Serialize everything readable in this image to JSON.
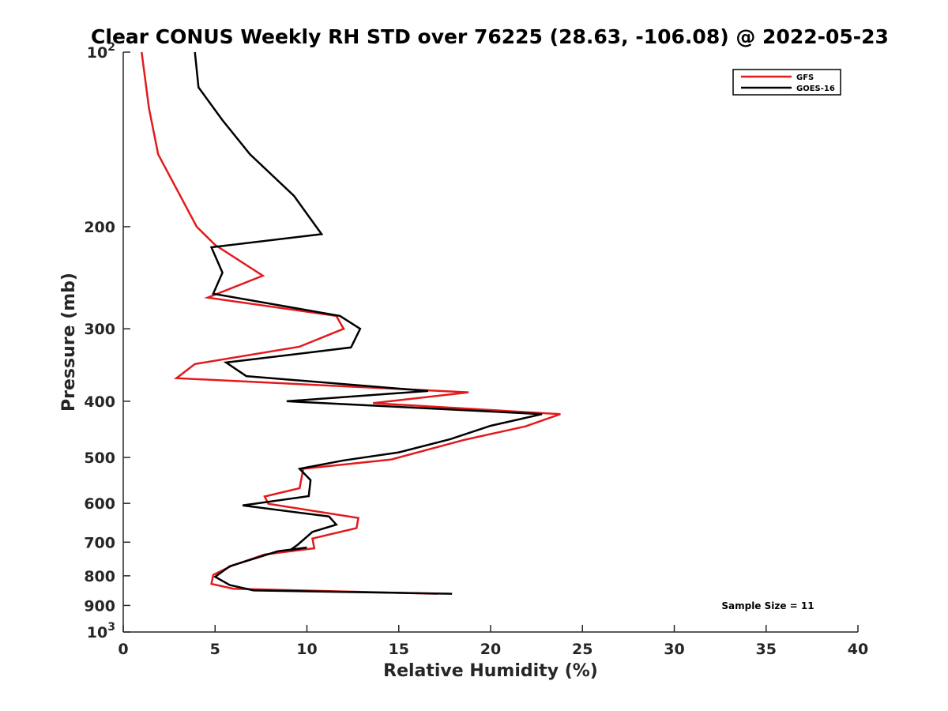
{
  "chart_data": {
    "type": "line",
    "title": "Clear CONUS Weekly RH STD over 76225 (28.63, -106.08) @ 2022-05-23",
    "xlabel": "Relative Humidity (%)",
    "ylabel": "Pressure (mb)",
    "xlim": [
      0,
      40
    ],
    "ylim": [
      100,
      1000
    ],
    "y_scale": "log",
    "y_reversed": true,
    "x_ticks": [
      0,
      5,
      10,
      15,
      20,
      25,
      30,
      35,
      40
    ],
    "y_ticks": [
      {
        "value": 100,
        "label": "10",
        "sup": "2"
      },
      {
        "value": 200,
        "label": "200"
      },
      {
        "value": 300,
        "label": "300"
      },
      {
        "value": 400,
        "label": "400"
      },
      {
        "value": 500,
        "label": "500"
      },
      {
        "value": 600,
        "label": "600"
      },
      {
        "value": 700,
        "label": "700"
      },
      {
        "value": 800,
        "label": "800"
      },
      {
        "value": 900,
        "label": "900"
      },
      {
        "value": 1000,
        "label": "10",
        "sup": "3"
      }
    ],
    "grid": false,
    "legend_position": "top-right",
    "annotation": "Sample Size = 11",
    "series": [
      {
        "name": "GFS",
        "color": "#e31a1c",
        "points": [
          [
            1.0,
            100
          ],
          [
            1.4,
            125
          ],
          [
            1.9,
            150
          ],
          [
            4.0,
            200
          ],
          [
            5.0,
            215
          ],
          [
            7.6,
            243
          ],
          [
            4.6,
            265
          ],
          [
            11.6,
            285
          ],
          [
            12.0,
            300
          ],
          [
            9.6,
            322
          ],
          [
            3.9,
            345
          ],
          [
            2.9,
            365
          ],
          [
            18.8,
            386
          ],
          [
            13.6,
            403
          ],
          [
            23.8,
            421
          ],
          [
            21.9,
            442
          ],
          [
            18.6,
            466
          ],
          [
            14.6,
            504
          ],
          [
            9.8,
            523
          ],
          [
            9.6,
            565
          ],
          [
            7.7,
            584
          ],
          [
            7.9,
            601
          ],
          [
            12.8,
            636
          ],
          [
            12.7,
            662
          ],
          [
            10.3,
            690
          ],
          [
            10.4,
            717
          ],
          [
            7.7,
            735
          ],
          [
            5.9,
            769
          ],
          [
            4.9,
            797
          ],
          [
            4.8,
            826
          ],
          [
            6.0,
            842
          ],
          [
            17.1,
            859
          ]
        ]
      },
      {
        "name": "GOES-16",
        "color": "#000000",
        "points": [
          [
            3.9,
            100
          ],
          [
            4.1,
            115
          ],
          [
            5.4,
            131
          ],
          [
            6.9,
            150
          ],
          [
            9.3,
            177
          ],
          [
            10.8,
            206
          ],
          [
            4.8,
            217
          ],
          [
            5.4,
            240
          ],
          [
            4.9,
            261
          ],
          [
            11.8,
            285
          ],
          [
            12.9,
            300
          ],
          [
            12.4,
            323
          ],
          [
            5.6,
            343
          ],
          [
            6.7,
            362
          ],
          [
            16.6,
            384
          ],
          [
            8.9,
            400
          ],
          [
            22.8,
            421
          ],
          [
            20.0,
            441
          ],
          [
            17.8,
            465
          ],
          [
            15.0,
            490
          ],
          [
            12.0,
            506
          ],
          [
            9.6,
            523
          ],
          [
            10.2,
            547
          ],
          [
            10.1,
            583
          ],
          [
            6.5,
            605
          ],
          [
            11.2,
            632
          ],
          [
            11.6,
            653
          ],
          [
            10.3,
            672
          ],
          [
            9.5,
            707
          ],
          [
            9.1,
            722
          ],
          [
            10.0,
            715
          ],
          [
            8.4,
            726
          ],
          [
            5.8,
            770
          ],
          [
            5.0,
            803
          ],
          [
            5.8,
            830
          ],
          [
            7.1,
            848
          ],
          [
            17.9,
            859
          ]
        ]
      }
    ]
  }
}
